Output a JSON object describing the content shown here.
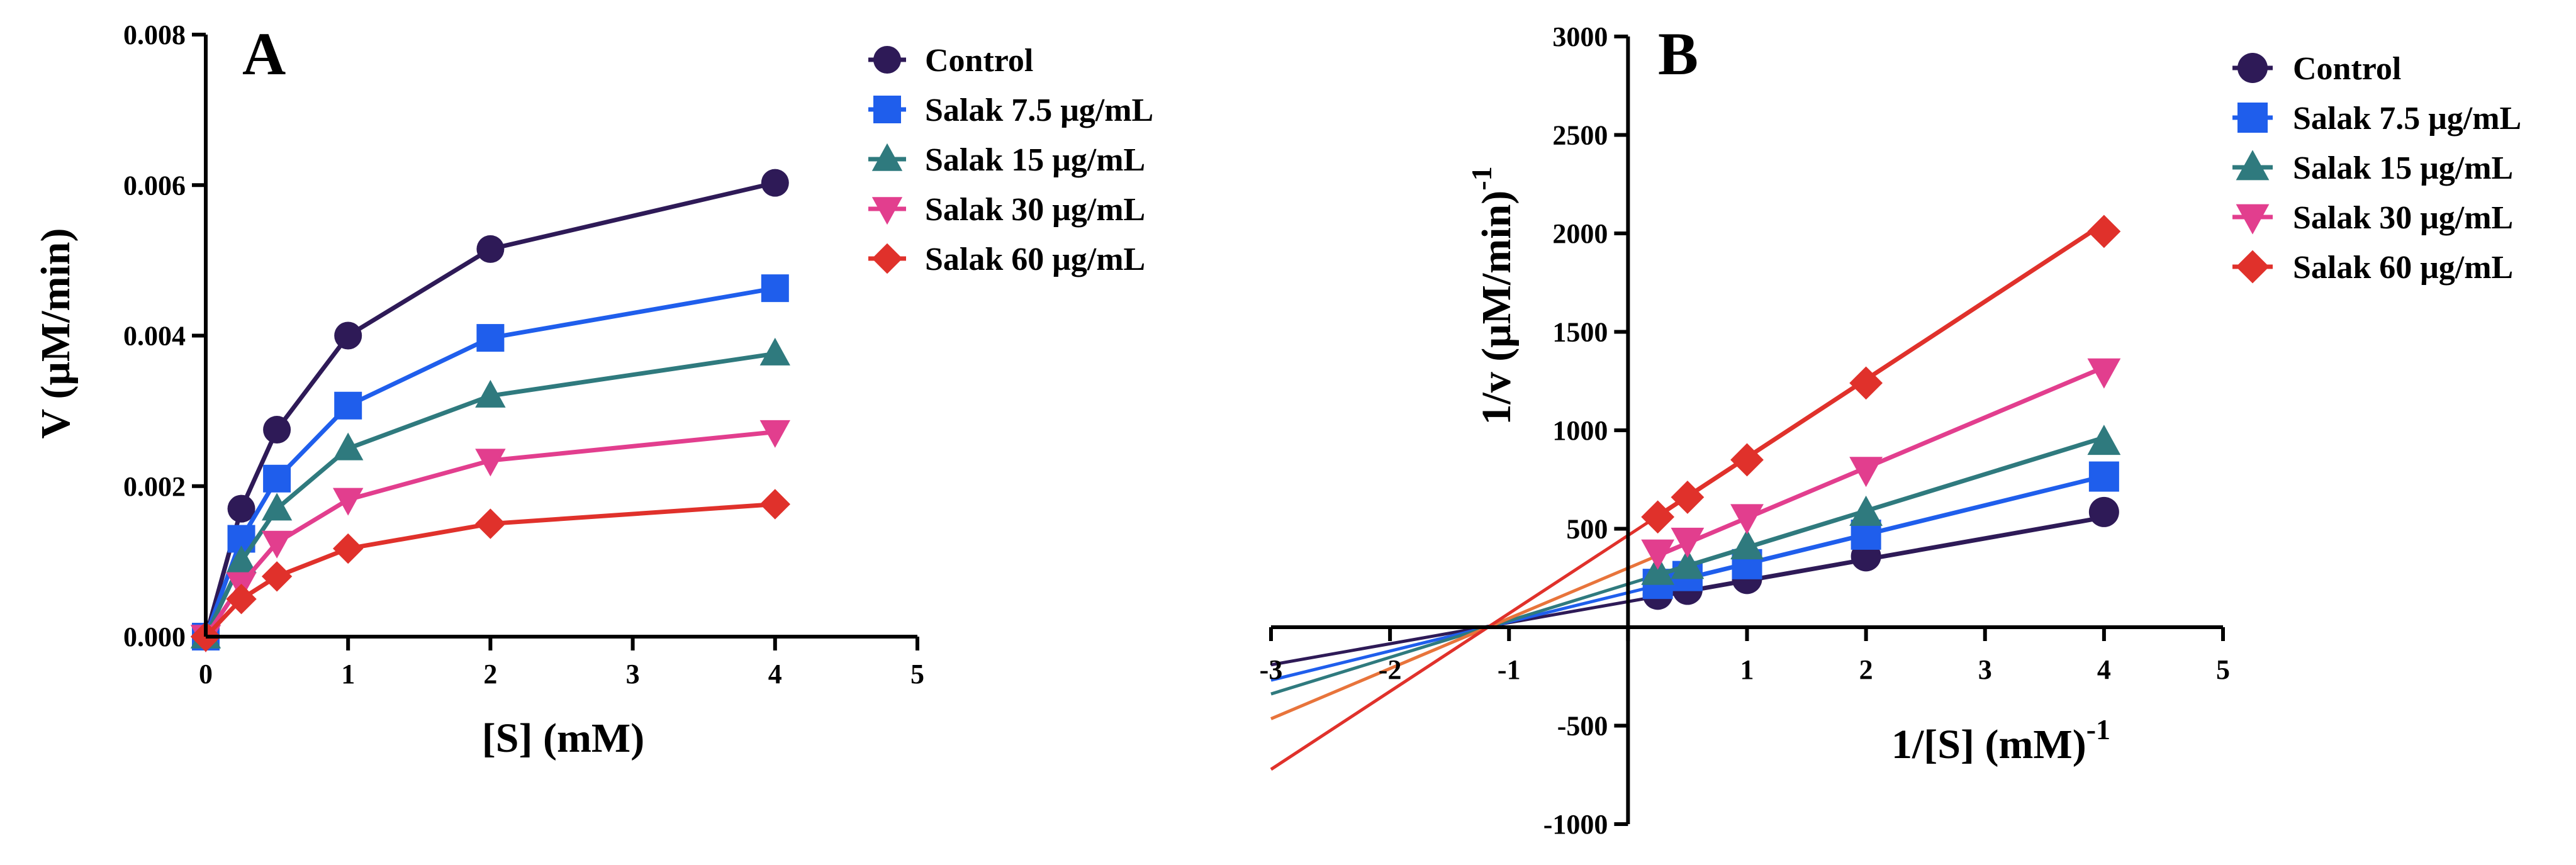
{
  "chart_data": [
    {
      "panel": "A",
      "type": "line",
      "xlabel": "[S] (mM)",
      "ylabel": "V (μM/min)",
      "xlim": [
        0,
        5
      ],
      "ylim": [
        0,
        0.008
      ],
      "x_ticks": [
        "0",
        "1",
        "2",
        "3",
        "4",
        "5"
      ],
      "y_ticks": [
        "0.000",
        "0.002",
        "0.004",
        "0.006",
        "0.008"
      ],
      "x": [
        0,
        0.25,
        0.5,
        1,
        2,
        4
      ],
      "series": [
        {
          "name": "Control",
          "color": "#2e1a57",
          "marker": "circle",
          "values": [
            0,
            0.0017,
            0.00275,
            0.004,
            0.00515,
            0.00603
          ]
        },
        {
          "name": "Salak 7.5 μg/mL",
          "color": "#1f5eec",
          "marker": "square",
          "values": [
            0,
            0.0013,
            0.0021,
            0.00307,
            0.00397,
            0.00463
          ]
        },
        {
          "name": "Salak 15 μg/mL",
          "color": "#2f7a7e",
          "marker": "triangle-up",
          "values": [
            0,
            0.001,
            0.0017,
            0.0025,
            0.0032,
            0.00376
          ]
        },
        {
          "name": "Salak 30 μg/mL",
          "color": "#e23e8e",
          "marker": "triangle-down",
          "values": [
            0,
            0.0007,
            0.00125,
            0.00182,
            0.00234,
            0.00272
          ]
        },
        {
          "name": "Salak 60 μg/mL",
          "color": "#e0312b",
          "marker": "diamond",
          "values": [
            0,
            0.0005,
            0.0008,
            0.00117,
            0.0015,
            0.00176
          ]
        }
      ],
      "grid": false,
      "legend": "right"
    },
    {
      "panel": "B",
      "type": "line",
      "xlabel": "1/[S] (mM)",
      "xlabel_sup": "-1",
      "ylabel": "1/v (μM/min)",
      "ylabel_sup": "-1",
      "xlim": [
        -3,
        5
      ],
      "ylim": [
        -1000,
        3000
      ],
      "x_ticks": [
        "-3",
        "-2",
        "-1",
        "1",
        "2",
        "3",
        "4",
        "5"
      ],
      "y_ticks": [
        "-1000",
        "-500",
        "500",
        "1000",
        "1500",
        "2000",
        "2500",
        "3000"
      ],
      "x": [
        0.25,
        0.5,
        1,
        2,
        4
      ],
      "series": [
        {
          "name": "Control",
          "color": "#2e1a57",
          "fit_color": "#2e1a57",
          "marker": "circle",
          "values": [
            165,
            190,
            245,
            360,
            585
          ],
          "fit": {
            "slope": 107,
            "intercept": 130
          }
        },
        {
          "name": "Salak 7.5 μg/mL",
          "color": "#1f5eec",
          "fit_color": "#1f5eec",
          "marker": "square",
          "values": [
            220,
            260,
            320,
            470,
            765
          ],
          "fit": {
            "slope": 148,
            "intercept": 175
          }
        },
        {
          "name": "Salak 15 μg/mL",
          "color": "#2f7a7e",
          "fit_color": "#2f7a7e",
          "marker": "triangle-up",
          "values": [
            280,
            310,
            410,
            580,
            940
          ],
          "fit": {
            "slope": 186,
            "intercept": 219
          }
        },
        {
          "name": "Salak 30 μg/mL",
          "color": "#e23e8e",
          "fit_color": "#e8743b",
          "marker": "triangle-down",
          "values": [
            380,
            440,
            560,
            800,
            1300
          ],
          "fit": {
            "slope": 255,
            "intercept": 300
          }
        },
        {
          "name": "Salak 60 μg/mL",
          "color": "#e0312b",
          "fit_color": "#e0312b",
          "marker": "diamond",
          "values": [
            560,
            660,
            850,
            1240,
            2010
          ],
          "fit": {
            "slope": 396,
            "intercept": 466
          }
        }
      ],
      "grid": false,
      "legend": "right"
    }
  ]
}
